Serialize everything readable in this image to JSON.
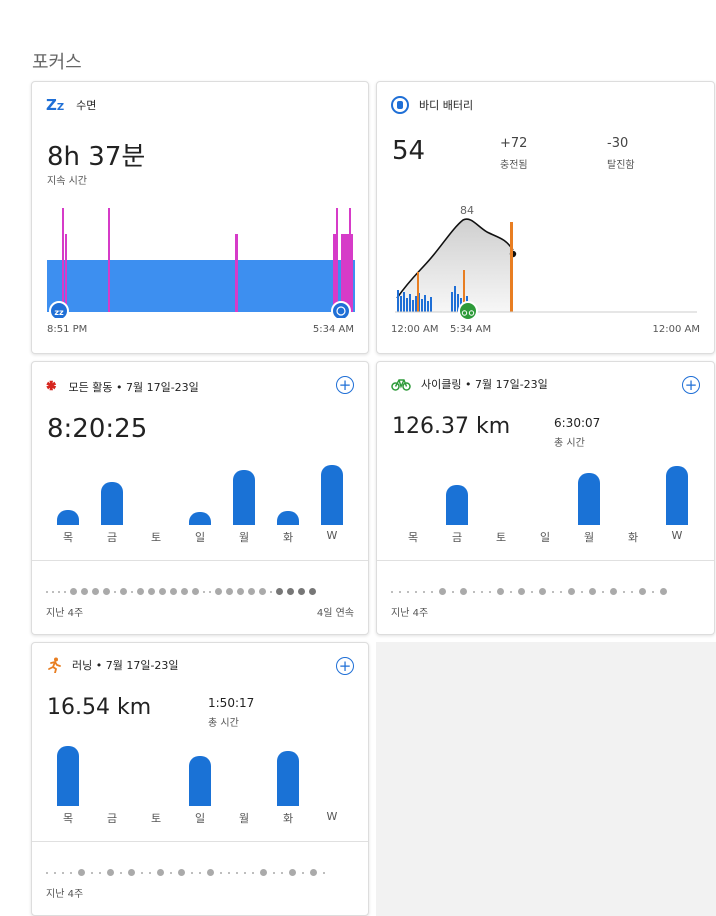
{
  "section_title": "포커스",
  "sleep": {
    "title": "수면",
    "duration": "8h 37분",
    "duration_label": "지속 시간",
    "start_time": "8:51 PM",
    "end_time": "5:34 AM"
  },
  "body_battery": {
    "title": "바디 배터리",
    "value": "54",
    "charged_value": "+72",
    "charged_label": "충전됨",
    "drained_value": "-30",
    "drained_label": "탈진함",
    "peak_label": "84",
    "time_start": "12:00 AM",
    "time_mid": "5:34 AM",
    "time_end": "12:00 AM"
  },
  "all_activity": {
    "title": "모든 활동 • 7월 17일-23일",
    "value": "8:20:25",
    "days": [
      "목",
      "금",
      "토",
      "일",
      "월",
      "화",
      "W"
    ],
    "bar_values": [
      0.25,
      0.72,
      0,
      0.22,
      0.92,
      0.23,
      1.0
    ],
    "footer_left": "지난 4주",
    "footer_right": "4일 연속"
  },
  "cycling": {
    "title": "사이클링 • 7월 17일-23일",
    "value": "126.37 km",
    "total_time": "6:30:07",
    "total_time_label": "총 시간",
    "days": [
      "목",
      "금",
      "토",
      "일",
      "월",
      "화",
      "W"
    ],
    "bar_values": [
      0,
      0.66,
      0,
      0,
      0.86,
      0,
      0.98
    ],
    "footer_left": "지난 4주"
  },
  "running": {
    "title": "러닝 • 7월 17일-23일",
    "value": "16.54 km",
    "total_time": "1:50:17",
    "total_time_label": "총 시간",
    "days": [
      "목",
      "금",
      "토",
      "일",
      "월",
      "화",
      "W"
    ],
    "bar_values": [
      1.0,
      0,
      0,
      0.84,
      0,
      0.92,
      0
    ],
    "footer_left": "지난 4주"
  },
  "colors": {
    "accent_blue": "#1a72d6",
    "sleep_awake": "#d63bc8",
    "sleep_deep": "#3d8ff0",
    "battery_drain": "#e87e22",
    "cycling_green": "#2e9b3a"
  },
  "icons": {
    "sleep": "zz-icon",
    "battery": "body-battery-icon",
    "activity": "figure-icon",
    "cycling": "bike-icon",
    "running": "runner-icon",
    "add": "plus-circle-icon"
  }
}
